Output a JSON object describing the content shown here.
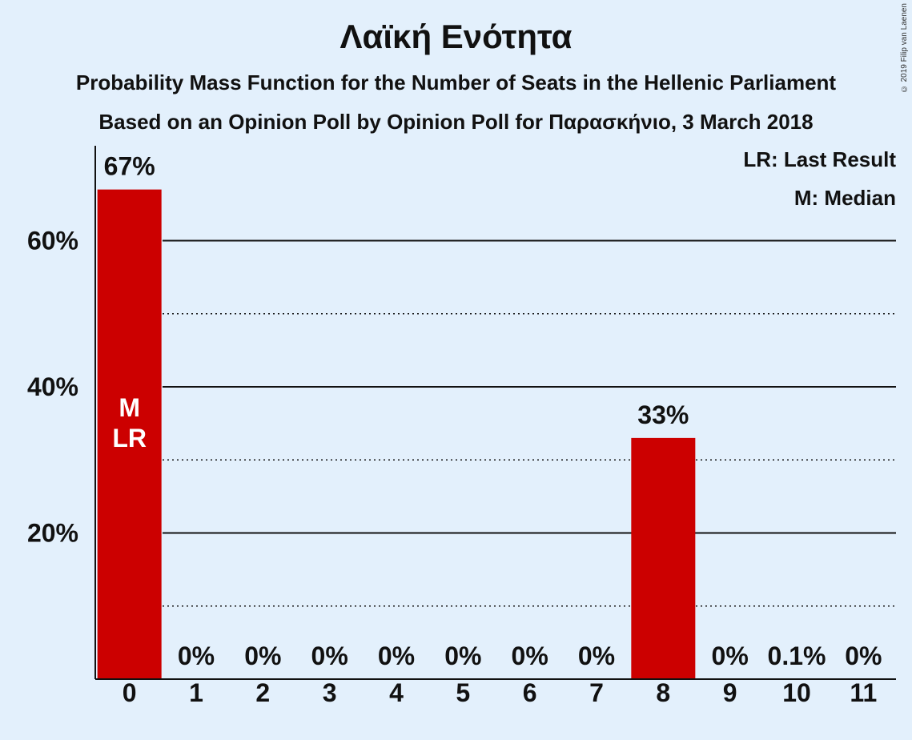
{
  "chart_data": {
    "type": "bar",
    "title": "Λαϊκή Ενότητα",
    "subtitle": "Probability Mass Function for the Number of Seats in the Hellenic Parliament",
    "subtitle2": "Based on an Opinion Poll by Opinion Poll for Παρασκήνιο, 3 March 2018",
    "copyright": "© 2019 Filip van Laenen",
    "legend": [
      "LR: Last Result",
      "M: Median"
    ],
    "legend_position": "top-right",
    "categories": [
      "0",
      "1",
      "2",
      "3",
      "4",
      "5",
      "6",
      "7",
      "8",
      "9",
      "10",
      "11"
    ],
    "values": [
      67,
      0,
      0,
      0,
      0,
      0,
      0,
      0,
      33,
      0,
      0.1,
      0
    ],
    "labels": [
      "67%",
      "0%",
      "0%",
      "0%",
      "0%",
      "0%",
      "0%",
      "0%",
      "33%",
      "0%",
      "0.1%",
      "0%"
    ],
    "bar_markers": {
      "0": [
        "M",
        "LR"
      ]
    },
    "yticks": [
      20,
      40,
      60
    ],
    "ytick_labels": [
      "20%",
      "40%",
      "60%"
    ],
    "minor_gridlines": [
      10,
      30,
      50
    ],
    "ylim": [
      0,
      73
    ],
    "grid": true,
    "colors": {
      "bar": "#cc0000",
      "background": "#e3f0fc",
      "text": "#111111",
      "marker_text": "#ffffff"
    }
  }
}
